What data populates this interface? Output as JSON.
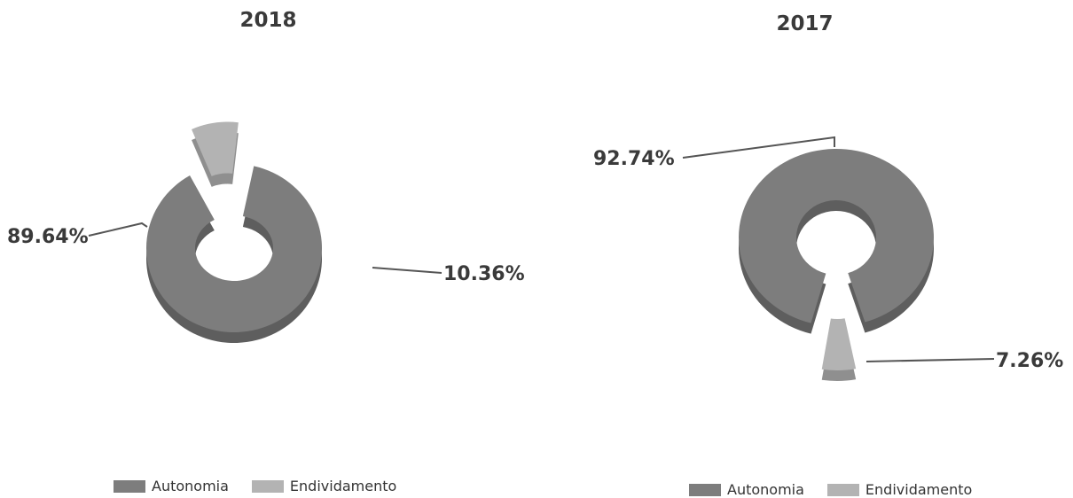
{
  "colors": {
    "autonomia": "#7d7d7d",
    "autonomia_side": "#5e5e5e",
    "endividamento": "#b3b3b3",
    "endividamento_side": "#8f8f8f",
    "leader": "#555555",
    "text": "#3a3a3a"
  },
  "chart_data": [
    {
      "type": "pie",
      "title": "2018",
      "categories": [
        "Autonomia",
        "Endividamento"
      ],
      "values": [
        89.64,
        10.36
      ],
      "labels": [
        "89.64%",
        "10.36%"
      ],
      "legend": {
        "items": [
          "Autonomia",
          "Endividamento"
        ],
        "placement": "bottom"
      },
      "style": "3d-donut, exploded Endividamento slice"
    },
    {
      "type": "pie",
      "title": "2017",
      "categories": [
        "Autonomia",
        "Endividamento"
      ],
      "values": [
        92.74,
        7.26
      ],
      "labels": [
        "92.74%",
        "7.26%"
      ],
      "legend": {
        "items": [
          "Autonomia",
          "Endividamento"
        ],
        "placement": "bottom"
      },
      "style": "3d-donut, exploded Endividamento slice"
    }
  ]
}
